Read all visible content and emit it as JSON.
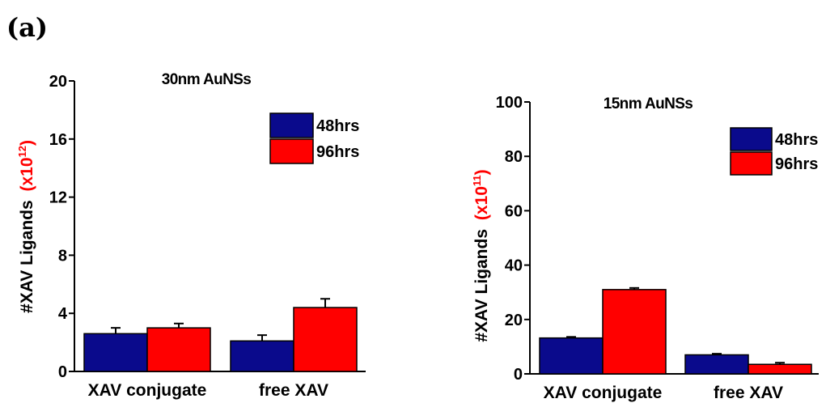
{
  "panel_label": "(a)",
  "chart_data": [
    {
      "type": "bar",
      "title": "30nm AuNSs",
      "ylabel": "#XAV Ligands",
      "ylabel_unit": {
        "prefix": "(x10",
        "exponent": "12",
        "suffix": ")"
      },
      "categories": [
        "XAV conjugate",
        "free XAV"
      ],
      "ylim": [
        0,
        20
      ],
      "yticks": [
        0,
        4,
        8,
        12,
        16,
        20
      ],
      "series": [
        {
          "name": "48hrs",
          "color": "#0a0a8c",
          "values": [
            2.6,
            2.1
          ],
          "errors": [
            0.4,
            0.4
          ]
        },
        {
          "name": "96hrs",
          "color": "#ff0000",
          "values": [
            3.0,
            4.4
          ],
          "errors": [
            0.3,
            0.6
          ]
        }
      ],
      "legend_position": "top-right",
      "grid": false
    },
    {
      "type": "bar",
      "title": "15nm AuNSs",
      "ylabel": "#XAV Ligands",
      "ylabel_unit": {
        "prefix": "(x10",
        "exponent": "11",
        "suffix": ")"
      },
      "categories": [
        "XAV conjugate",
        "free XAV"
      ],
      "ylim": [
        0,
        100
      ],
      "yticks": [
        0,
        20,
        40,
        60,
        80,
        100
      ],
      "series": [
        {
          "name": "48hrs",
          "color": "#0a0a8c",
          "values": [
            13.2,
            7.0
          ],
          "errors": [
            0.4,
            0.4
          ]
        },
        {
          "name": "96hrs",
          "color": "#ff0000",
          "values": [
            31.0,
            3.5
          ],
          "errors": [
            0.6,
            0.6
          ]
        }
      ],
      "legend_position": "top-right",
      "grid": false
    }
  ]
}
